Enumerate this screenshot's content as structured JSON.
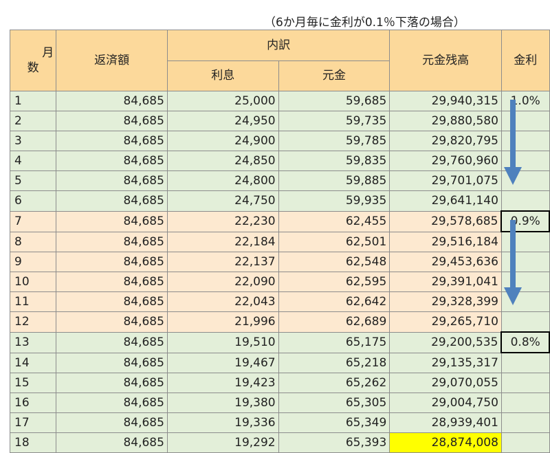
{
  "caption": "（6か月毎に金利が0.1％下落の場合）",
  "headers": {
    "months": "月\n数",
    "payment": "返済額",
    "breakdown": "内訳",
    "interest": "利息",
    "principal": "元金",
    "balance": "元金残高",
    "rate": "金利"
  },
  "rows": [
    {
      "month": "1",
      "payment": "84,685",
      "interest": "25,000",
      "principal": "59,685",
      "balance": "29,940,315",
      "rate": "1.0%"
    },
    {
      "month": "2",
      "payment": "84,685",
      "interest": "24,950",
      "principal": "59,735",
      "balance": "29,880,580",
      "rate": ""
    },
    {
      "month": "3",
      "payment": "84,685",
      "interest": "24,900",
      "principal": "59,785",
      "balance": "29,820,795",
      "rate": ""
    },
    {
      "month": "4",
      "payment": "84,685",
      "interest": "24,850",
      "principal": "59,835",
      "balance": "29,760,960",
      "rate": ""
    },
    {
      "month": "5",
      "payment": "84,685",
      "interest": "24,800",
      "principal": "59,885",
      "balance": "29,701,075",
      "rate": ""
    },
    {
      "month": "6",
      "payment": "84,685",
      "interest": "24,750",
      "principal": "59,935",
      "balance": "29,641,140",
      "rate": ""
    },
    {
      "month": "7",
      "payment": "84,685",
      "interest": "22,230",
      "principal": "62,455",
      "balance": "29,578,685",
      "rate": "0.9%"
    },
    {
      "month": "8",
      "payment": "84,685",
      "interest": "22,184",
      "principal": "62,501",
      "balance": "29,516,184",
      "rate": ""
    },
    {
      "month": "9",
      "payment": "84,685",
      "interest": "22,137",
      "principal": "62,548",
      "balance": "29,453,636",
      "rate": ""
    },
    {
      "month": "10",
      "payment": "84,685",
      "interest": "22,090",
      "principal": "62,595",
      "balance": "29,391,041",
      "rate": ""
    },
    {
      "month": "11",
      "payment": "84,685",
      "interest": "22,043",
      "principal": "62,642",
      "balance": "29,328,399",
      "rate": ""
    },
    {
      "month": "12",
      "payment": "84,685",
      "interest": "21,996",
      "principal": "62,689",
      "balance": "29,265,710",
      "rate": ""
    },
    {
      "month": "13",
      "payment": "84,685",
      "interest": "19,510",
      "principal": "65,175",
      "balance": "29,200,535",
      "rate": "0.8%"
    },
    {
      "month": "14",
      "payment": "84,685",
      "interest": "19,467",
      "principal": "65,218",
      "balance": "29,135,317",
      "rate": ""
    },
    {
      "month": "15",
      "payment": "84,685",
      "interest": "19,423",
      "principal": "65,262",
      "balance": "29,070,055",
      "rate": ""
    },
    {
      "month": "16",
      "payment": "84,685",
      "interest": "19,380",
      "principal": "65,305",
      "balance": "29,004,750",
      "rate": ""
    },
    {
      "month": "17",
      "payment": "84,685",
      "interest": "19,336",
      "principal": "65,349",
      "balance": "28,939,401",
      "rate": ""
    },
    {
      "month": "18",
      "payment": "84,685",
      "interest": "19,292",
      "principal": "65,393",
      "balance": "28,874,008",
      "rate": ""
    }
  ],
  "colors": {
    "header": "#fcd99b",
    "green_band": "#e3efd9",
    "orange_band": "#fde9d0",
    "highlight": "#ffff00",
    "arrow": "#4f81bd"
  }
}
